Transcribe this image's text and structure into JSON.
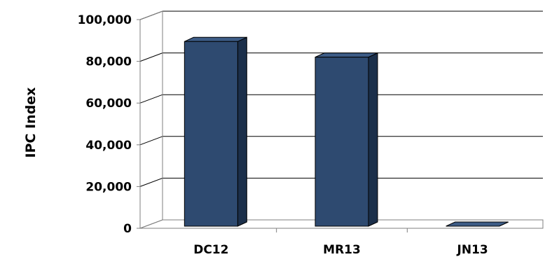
{
  "chart_data": {
    "type": "bar",
    "style": "3d",
    "title": "",
    "xlabel": "",
    "ylabel": "IPC Index",
    "categories": [
      "DC12",
      "MR13",
      "JN13"
    ],
    "values": [
      88500,
      81000,
      0
    ],
    "ylim": [
      0,
      100000
    ],
    "yticks": [
      "0",
      "20,000",
      "40,000",
      "60,000",
      "80,000",
      "100,000"
    ],
    "grid": true,
    "legend": "none",
    "colors": {
      "bar_front": "#2e4a70",
      "bar_side": "#1b2f4a",
      "bar_top": "#3d5c86",
      "bar_outline": "#000000",
      "gridline": "#000000",
      "wall": "#7f7f7f"
    }
  }
}
